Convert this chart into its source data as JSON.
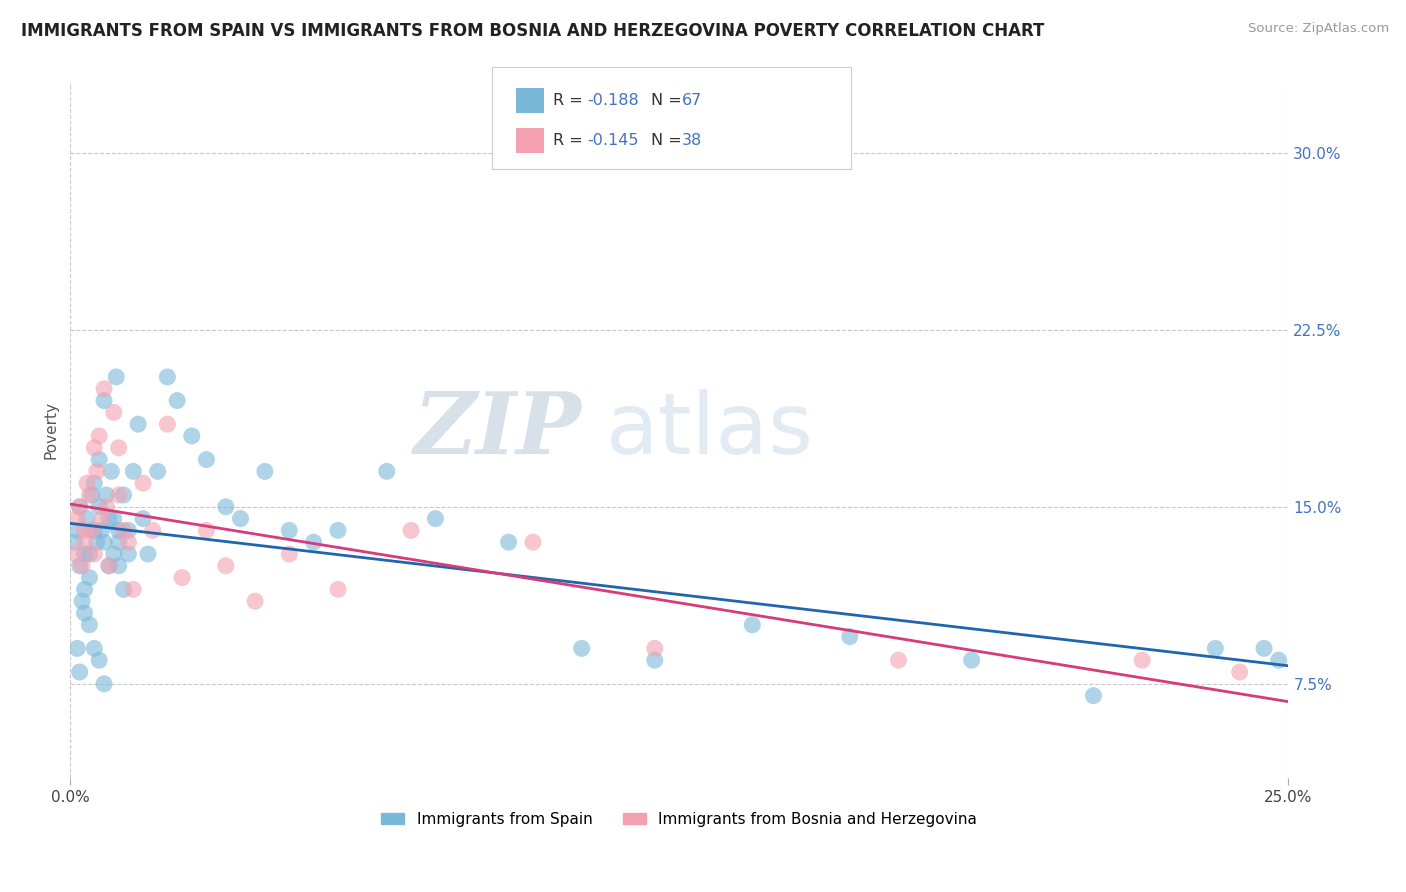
{
  "title": "IMMIGRANTS FROM SPAIN VS IMMIGRANTS FROM BOSNIA AND HERZEGOVINA POVERTY CORRELATION CHART",
  "source": "Source: ZipAtlas.com",
  "ylabel": "Poverty",
  "yticks": [
    7.5,
    15.0,
    22.5,
    30.0
  ],
  "ytick_labels": [
    "7.5%",
    "15.0%",
    "22.5%",
    "30.0%"
  ],
  "xrange": [
    0.0,
    25.0
  ],
  "yrange": [
    3.5,
    33.0
  ],
  "series1_color": "#7ab8d9",
  "series2_color": "#f4a0b0",
  "trendline1_color": "#2166ac",
  "trendline2_color": "#d63b7a",
  "watermark_zip": "ZIP",
  "watermark_atlas": "atlas",
  "spain_x": [
    0.1,
    0.15,
    0.2,
    0.2,
    0.25,
    0.3,
    0.3,
    0.35,
    0.4,
    0.4,
    0.45,
    0.5,
    0.5,
    0.55,
    0.6,
    0.6,
    0.65,
    0.7,
    0.7,
    0.75,
    0.8,
    0.8,
    0.85,
    0.9,
    0.9,
    0.95,
    1.0,
    1.0,
    1.0,
    1.1,
    1.1,
    1.2,
    1.2,
    1.3,
    1.4,
    1.5,
    1.6,
    1.8,
    2.0,
    2.2,
    2.5,
    2.8,
    3.2,
    3.5,
    4.0,
    4.5,
    5.0,
    5.5,
    6.5,
    7.5,
    9.0,
    10.5,
    12.0,
    14.0,
    16.0,
    18.5,
    21.0,
    23.5,
    24.5,
    24.8,
    0.15,
    0.2,
    0.3,
    0.4,
    0.5,
    0.6,
    0.7
  ],
  "spain_y": [
    13.5,
    14.0,
    12.5,
    15.0,
    11.0,
    13.0,
    11.5,
    14.5,
    12.0,
    13.0,
    15.5,
    14.0,
    16.0,
    13.5,
    15.0,
    17.0,
    14.0,
    13.5,
    19.5,
    15.5,
    14.5,
    12.5,
    16.5,
    13.0,
    14.5,
    20.5,
    12.5,
    13.5,
    14.0,
    15.5,
    11.5,
    14.0,
    13.0,
    16.5,
    18.5,
    14.5,
    13.0,
    16.5,
    20.5,
    19.5,
    18.0,
    17.0,
    15.0,
    14.5,
    16.5,
    14.0,
    13.5,
    14.0,
    16.5,
    14.5,
    13.5,
    9.0,
    8.5,
    10.0,
    9.5,
    8.5,
    7.0,
    9.0,
    9.0,
    8.5,
    9.0,
    8.0,
    10.5,
    10.0,
    9.0,
    8.5,
    7.5
  ],
  "bosnia_x": [
    0.1,
    0.15,
    0.2,
    0.25,
    0.3,
    0.3,
    0.35,
    0.4,
    0.45,
    0.5,
    0.5,
    0.55,
    0.6,
    0.65,
    0.7,
    0.75,
    0.8,
    0.9,
    1.0,
    1.0,
    1.1,
    1.2,
    1.3,
    1.5,
    1.7,
    2.0,
    2.3,
    2.8,
    3.2,
    3.8,
    4.5,
    5.5,
    7.0,
    9.5,
    12.0,
    17.0,
    22.0,
    24.0
  ],
  "bosnia_y": [
    13.0,
    14.5,
    15.0,
    12.5,
    14.0,
    13.5,
    16.0,
    15.5,
    14.0,
    17.5,
    13.0,
    16.5,
    18.0,
    14.5,
    20.0,
    15.0,
    12.5,
    19.0,
    15.5,
    17.5,
    14.0,
    13.5,
    11.5,
    16.0,
    14.0,
    18.5,
    12.0,
    14.0,
    12.5,
    11.0,
    13.0,
    11.5,
    14.0,
    13.5,
    9.0,
    8.5,
    8.5,
    8.0
  ]
}
